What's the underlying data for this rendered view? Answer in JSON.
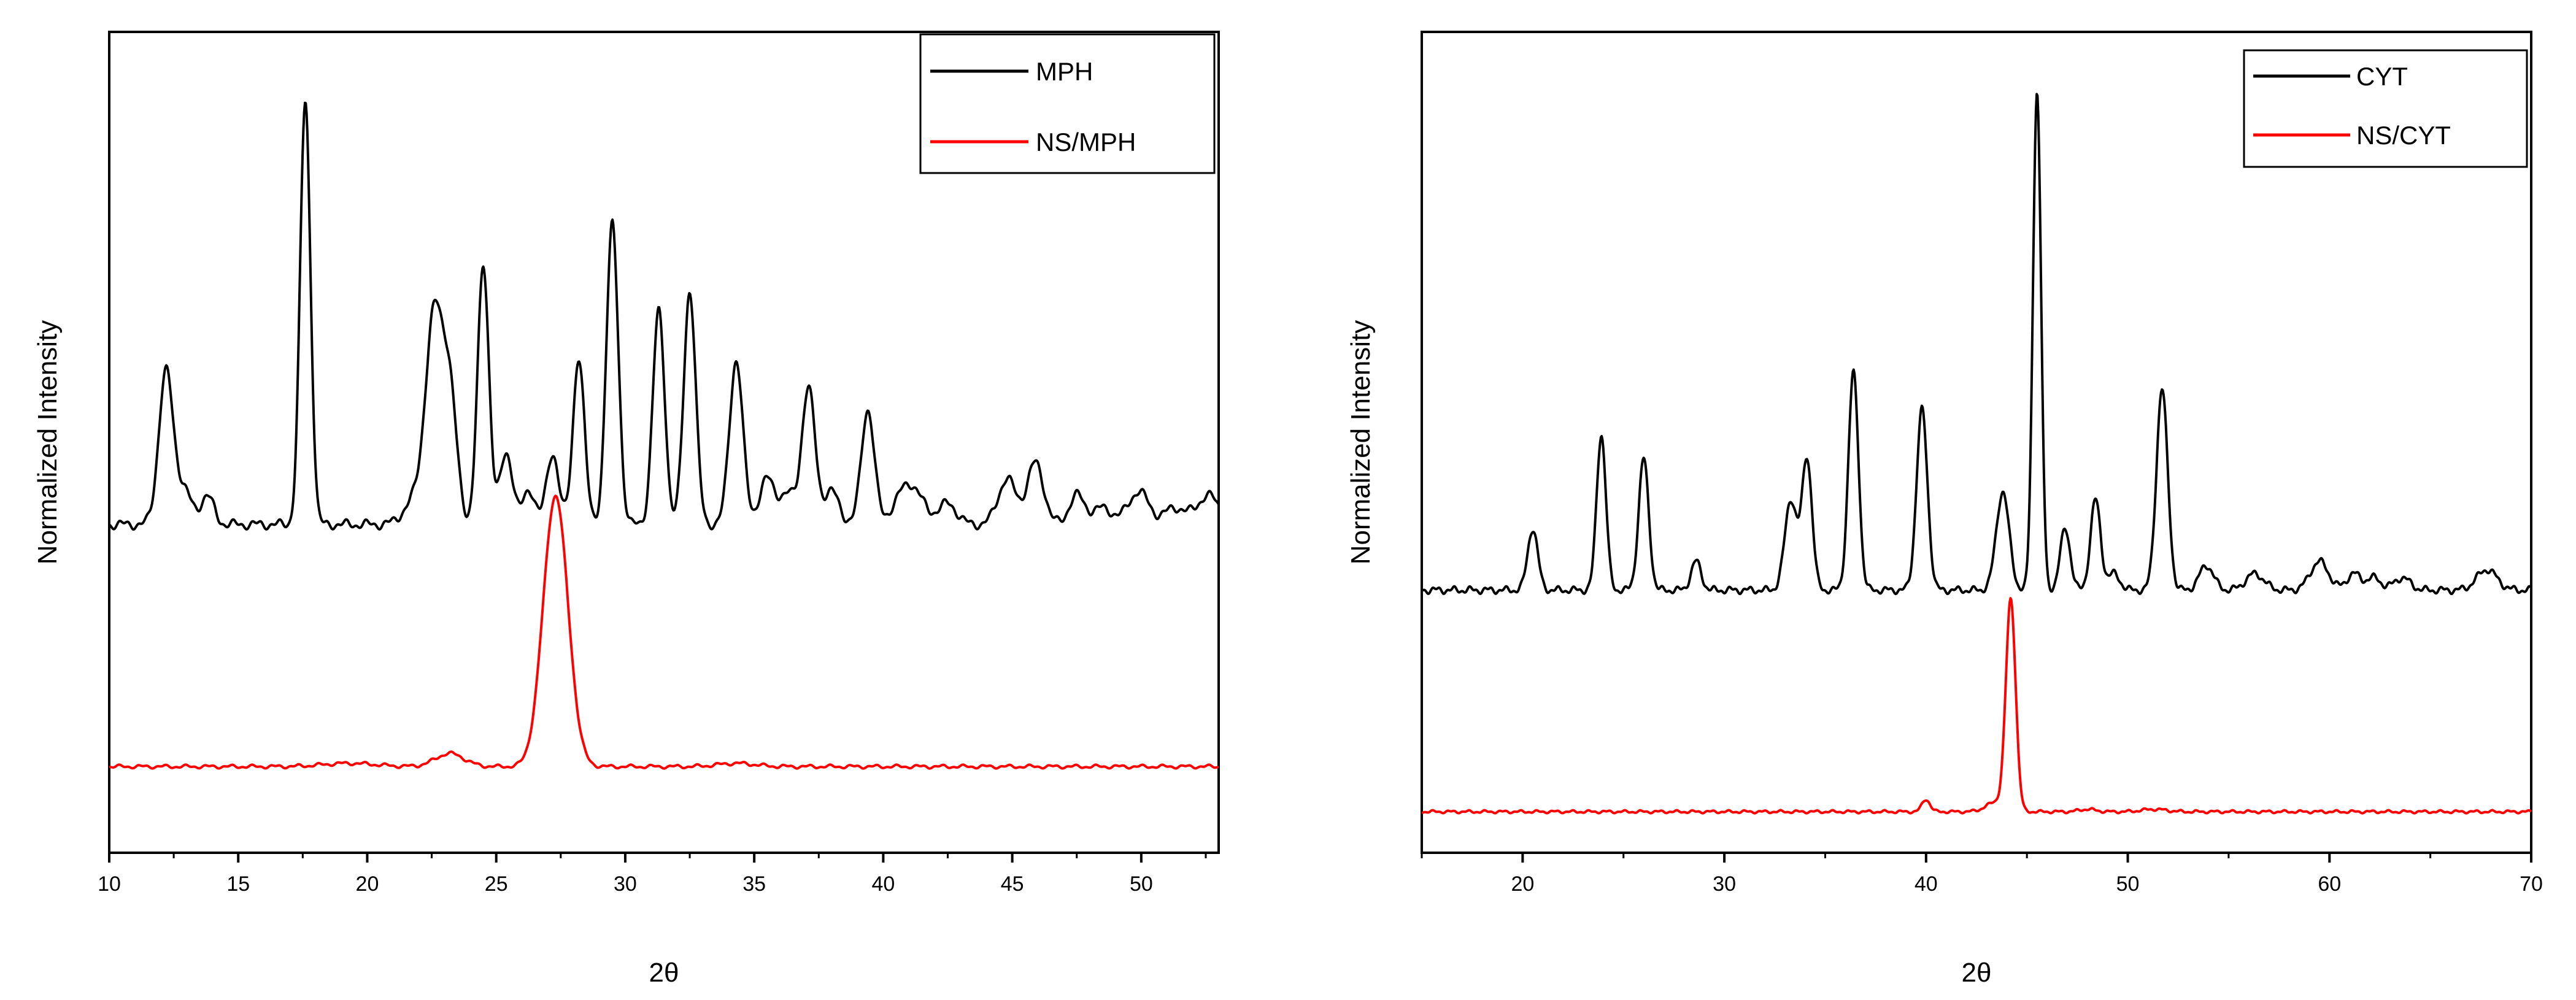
{
  "chart_data": [
    {
      "type": "line",
      "xlabel": "2θ",
      "ylabel": "Normalized Intensity",
      "xlim": [
        10,
        53
      ],
      "ylim": [
        0,
        1
      ],
      "x_ticks": [
        "10",
        "15",
        "20",
        "25",
        "30",
        "35",
        "40",
        "45",
        "50"
      ],
      "x_tick_values": [
        10,
        15,
        20,
        25,
        30,
        35,
        40,
        45,
        50
      ],
      "legend_position": "top-right",
      "series": [
        {
          "name": "MPH",
          "color": "#000000",
          "baseline": 0.4,
          "noise": 0.004,
          "peaks": [
            [
              12.2,
              0.185,
              0.28
            ],
            [
              12.9,
              0.04,
              0.3
            ],
            [
              13.8,
              0.035,
              0.25
            ],
            [
              17.6,
              0.515,
              0.2
            ],
            [
              21.9,
              0.03,
              0.45
            ],
            [
              22.6,
              0.245,
              0.33
            ],
            [
              23.2,
              0.15,
              0.28
            ],
            [
              24.5,
              0.315,
              0.22
            ],
            [
              25.4,
              0.085,
              0.26
            ],
            [
              26.3,
              0.04,
              0.25
            ],
            [
              27.2,
              0.085,
              0.24
            ],
            [
              28.2,
              0.205,
              0.22
            ],
            [
              29.5,
              0.365,
              0.23
            ],
            [
              31.3,
              0.26,
              0.23
            ],
            [
              32.5,
              0.285,
              0.23
            ],
            [
              34.3,
              0.2,
              0.26
            ],
            [
              35.5,
              0.055,
              0.3
            ],
            [
              36.3,
              0.035,
              0.3
            ],
            [
              37.1,
              0.165,
              0.26
            ],
            [
              38.0,
              0.04,
              0.3
            ],
            [
              39.4,
              0.14,
              0.25
            ],
            [
              41.0,
              0.05,
              0.5
            ],
            [
              42.5,
              0.025,
              0.35
            ],
            [
              44.8,
              0.055,
              0.35
            ],
            [
              45.9,
              0.075,
              0.32
            ],
            [
              47.5,
              0.035,
              0.3
            ],
            [
              48.5,
              0.02,
              0.4
            ],
            [
              49.9,
              0.04,
              0.4
            ],
            [
              51.3,
              0.02,
              0.4
            ],
            [
              52.6,
              0.035,
              0.45
            ]
          ]
        },
        {
          "name": "NS/MPH",
          "color": "#ff0000",
          "baseline": 0.105,
          "noise": 0.0015,
          "peaks": [
            [
              19.3,
              0.004,
              1.0
            ],
            [
              23.2,
              0.016,
              0.55
            ],
            [
              27.3,
              0.33,
              0.48
            ],
            [
              34.3,
              0.004,
              0.7
            ]
          ]
        }
      ]
    },
    {
      "type": "line",
      "xlabel": "2θ",
      "ylabel": "Normalized Intensity",
      "xlim": [
        15,
        70
      ],
      "ylim": [
        0,
        1
      ],
      "x_ticks": [
        "20",
        "30",
        "40",
        "50",
        "60",
        "70"
      ],
      "x_tick_values": [
        20,
        30,
        40,
        50,
        60,
        70
      ],
      "legend_position": "top-right",
      "series": [
        {
          "name": "CYT",
          "color": "#000000",
          "baseline": 0.32,
          "noise": 0.003,
          "peaks": [
            [
              20.5,
              0.075,
              0.25
            ],
            [
              23.9,
              0.19,
              0.23
            ],
            [
              26.0,
              0.16,
              0.25
            ],
            [
              28.6,
              0.035,
              0.25
            ],
            [
              33.3,
              0.11,
              0.3
            ],
            [
              34.1,
              0.16,
              0.25
            ],
            [
              36.4,
              0.265,
              0.25
            ],
            [
              39.8,
              0.22,
              0.27
            ],
            [
              43.8,
              0.12,
              0.32
            ],
            [
              45.5,
              0.61,
              0.2
            ],
            [
              46.9,
              0.075,
              0.25
            ],
            [
              48.4,
              0.11,
              0.25
            ],
            [
              49.3,
              0.02,
              0.3
            ],
            [
              51.7,
              0.245,
              0.28
            ],
            [
              53.9,
              0.03,
              0.35
            ],
            [
              56.3,
              0.02,
              0.45
            ],
            [
              59.5,
              0.035,
              0.45
            ],
            [
              61.2,
              0.02,
              0.35
            ],
            [
              62.2,
              0.015,
              0.35
            ],
            [
              63.6,
              0.015,
              0.4
            ],
            [
              67.8,
              0.025,
              0.5
            ]
          ]
        },
        {
          "name": "NS/CYT",
          "color": "#ff0000",
          "baseline": 0.05,
          "noise": 0.0012,
          "peaks": [
            [
              40.0,
              0.015,
              0.2
            ],
            [
              43.5,
              0.012,
              0.5
            ],
            [
              44.2,
              0.255,
              0.24
            ],
            [
              48.0,
              0.003,
              0.4
            ],
            [
              51.3,
              0.003,
              0.6
            ]
          ]
        }
      ]
    }
  ]
}
